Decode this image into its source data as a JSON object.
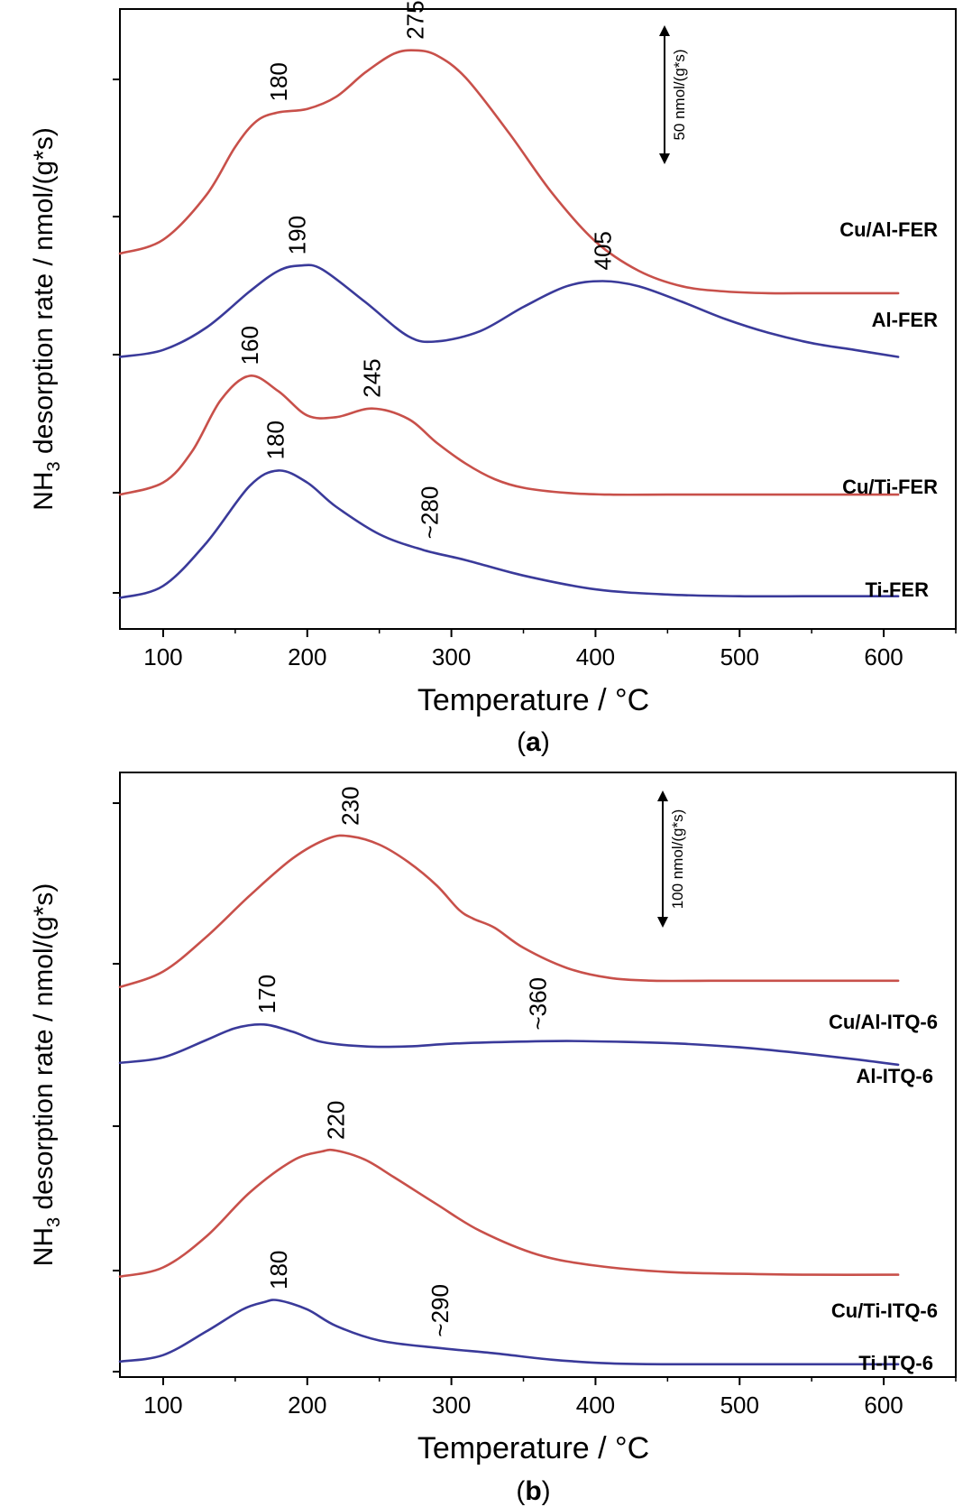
{
  "chart_data": [
    {
      "type": "line",
      "panel_label": "(a)",
      "panel_letter": "a",
      "xlabel": "Temperature / °C",
      "ylabel_main": "NH",
      "ylabel_sub": "3",
      "ylabel_rest": " desorption rate / nmol/(g*s)",
      "xlim": [
        70,
        650
      ],
      "xticks": [
        100,
        200,
        300,
        400,
        500,
        600
      ],
      "scale_bar_label": "50 nmol/(g*s)",
      "scale_bar_value": 50,
      "series": [
        {
          "name": "Cu/Al-FER",
          "color": "#c8504a",
          "x": [
            70,
            100,
            130,
            150,
            165,
            180,
            200,
            220,
            240,
            260,
            275,
            290,
            310,
            340,
            370,
            400,
            430,
            460,
            490,
            520,
            550,
            580,
            610
          ],
          "values": [
            218,
            226,
            252,
            280,
            295,
            300,
            302,
            309,
            323,
            334,
            336,
            333,
            320,
            288,
            253,
            225,
            208,
            199,
            196,
            195,
            195,
            195,
            195
          ]
        },
        {
          "name": "Al-FER",
          "color": "#3a3a9a",
          "x": [
            70,
            100,
            130,
            160,
            180,
            195,
            210,
            240,
            270,
            290,
            320,
            350,
            380,
            405,
            430,
            460,
            490,
            520,
            550,
            580,
            610
          ],
          "values": [
            158,
            162,
            175,
            196,
            208,
            211,
            209,
            190,
            170,
            167,
            173,
            187,
            199,
            202,
            199,
            190,
            180,
            172,
            166,
            162,
            158
          ]
        },
        {
          "name": "Cu/Ti-FER",
          "color": "#c8504a",
          "x": [
            70,
            100,
            120,
            140,
            160,
            180,
            200,
            220,
            245,
            270,
            290,
            310,
            330,
            350,
            380,
            410,
            450,
            500,
            550,
            610
          ],
          "values": [
            78,
            85,
            103,
            133,
            147,
            138,
            124,
            123,
            128,
            122,
            108,
            96,
            87,
            82,
            79,
            78,
            78,
            78,
            78,
            78
          ]
        },
        {
          "name": "Ti-FER",
          "color": "#3a3a9a",
          "x": [
            70,
            100,
            130,
            160,
            180,
            200,
            220,
            250,
            280,
            310,
            350,
            400,
            450,
            500,
            550,
            610
          ],
          "values": [
            18,
            25,
            50,
            83,
            92,
            85,
            71,
            55,
            46,
            40,
            31,
            23,
            20,
            19,
            19,
            19
          ]
        }
      ],
      "annotations": [
        {
          "text": "180",
          "x": 180,
          "y": 300
        },
        {
          "text": "275",
          "x": 275,
          "y": 336
        },
        {
          "text": "190",
          "x": 193,
          "y": 211
        },
        {
          "text": "405",
          "x": 405,
          "y": 202
        },
        {
          "text": "160",
          "x": 160,
          "y": 147
        },
        {
          "text": "245",
          "x": 245,
          "y": 128
        },
        {
          "text": "180",
          "x": 178,
          "y": 92
        },
        {
          "text": "~280",
          "x": 285,
          "y": 46
        }
      ]
    },
    {
      "type": "line",
      "panel_label": "(b)",
      "panel_letter": "b",
      "xlabel": "Temperature / °C",
      "ylabel_main": "NH",
      "ylabel_sub": "3",
      "ylabel_rest": " desorption rate / nmol/(g*s)",
      "xlim": [
        70,
        650
      ],
      "xticks": [
        100,
        200,
        300,
        400,
        500,
        600
      ],
      "scale_bar_label": "100 nmol/(g*s)",
      "scale_bar_value": 100,
      "series": [
        {
          "name": "Cu/Al-ITQ-6",
          "color": "#c8504a",
          "x": [
            70,
            100,
            130,
            160,
            190,
            215,
            230,
            250,
            270,
            290,
            305,
            315,
            330,
            350,
            380,
            410,
            440,
            480,
            520,
            560,
            610
          ],
          "values": [
            415,
            432,
            470,
            515,
            556,
            578,
            580,
            571,
            552,
            526,
            500,
            490,
            480,
            458,
            436,
            425,
            422,
            422,
            422,
            422,
            422
          ]
        },
        {
          "name": "Al-ITQ-6",
          "color": "#3a3a9a",
          "x": [
            70,
            100,
            130,
            150,
            170,
            190,
            210,
            240,
            270,
            300,
            340,
            380,
            420,
            460,
            500,
            540,
            580,
            610
          ],
          "values": [
            332,
            338,
            357,
            370,
            374,
            366,
            355,
            350,
            350,
            353,
            355,
            356,
            355,
            353,
            349,
            343,
            336,
            330
          ]
        },
        {
          "name": "Cu/Ti-ITQ-6",
          "color": "#c8504a",
          "x": [
            70,
            100,
            130,
            160,
            190,
            210,
            220,
            240,
            260,
            290,
            320,
            360,
            400,
            450,
            500,
            550,
            610
          ],
          "values": [
            98,
            108,
            142,
            190,
            225,
            235,
            236,
            226,
            207,
            177,
            148,
            122,
            110,
            103,
            101,
            100,
            100
          ]
        },
        {
          "name": "Ti-ITQ-6",
          "color": "#3a3a9a",
          "x": [
            70,
            100,
            130,
            155,
            170,
            180,
            200,
            220,
            250,
            290,
            330,
            370,
            410,
            450,
            500,
            550,
            610
          ],
          "values": [
            5,
            12,
            38,
            62,
            70,
            72,
            62,
            44,
            28,
            20,
            14,
            7,
            3,
            2,
            2,
            2,
            2
          ]
        }
      ],
      "annotations": [
        {
          "text": "230",
          "x": 230,
          "y": 580
        },
        {
          "text": "170",
          "x": 172,
          "y": 374
        },
        {
          "text": "~360",
          "x": 360,
          "y": 356
        },
        {
          "text": "220",
          "x": 220,
          "y": 236
        },
        {
          "text": "180",
          "x": 180,
          "y": 72
        },
        {
          "text": "~290",
          "x": 292,
          "y": 20
        }
      ]
    }
  ]
}
